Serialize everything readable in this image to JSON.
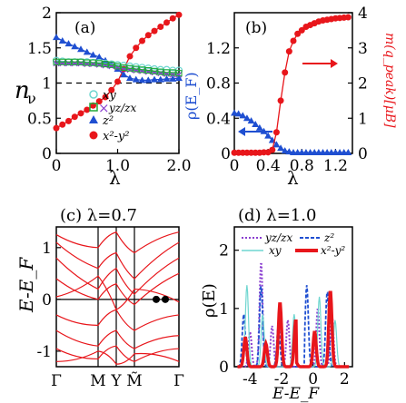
{
  "chart_data": [
    {
      "panel": "(a)",
      "type": "scatter",
      "xlabel": "λ",
      "ylabel": "n",
      "ylabel_sub": "ν",
      "xlim": [
        0,
        2.0
      ],
      "ylim": [
        0,
        2
      ],
      "xticks": [
        "0",
        "1.0",
        "2.0"
      ],
      "yticks": [
        "0",
        "0.5",
        "1",
        "1.5",
        "2"
      ],
      "dashed_y": 1.0,
      "legend": [
        "xy",
        "yz/zx",
        "z²",
        "x²-y²"
      ],
      "series": [
        {
          "name": "x²-y²",
          "color": "#e8161b",
          "marker": "circle",
          "x": [
            0,
            0.1,
            0.2,
            0.3,
            0.4,
            0.5,
            0.6,
            0.7,
            0.8,
            0.9,
            1.0,
            1.1,
            1.2,
            1.3,
            1.4,
            1.5,
            1.6,
            1.7,
            1.8,
            1.9,
            2.0
          ],
          "y": [
            0.36,
            0.41,
            0.46,
            0.52,
            0.57,
            0.62,
            0.68,
            0.74,
            0.8,
            0.9,
            1.02,
            1.2,
            1.38,
            1.5,
            1.6,
            1.68,
            1.74,
            1.8,
            1.86,
            1.92,
            1.97
          ]
        },
        {
          "name": "z²",
          "color": "#1f4fd1",
          "marker": "triangle",
          "x": [
            0,
            0.1,
            0.2,
            0.3,
            0.4,
            0.5,
            0.6,
            0.7,
            0.8,
            0.9,
            1.0,
            1.1,
            1.2,
            1.3,
            1.4,
            1.5,
            1.6,
            1.7,
            1.8,
            1.9,
            2.0
          ],
          "y": [
            1.65,
            1.6,
            1.56,
            1.52,
            1.48,
            1.44,
            1.4,
            1.37,
            1.32,
            1.27,
            1.2,
            1.12,
            1.07,
            1.05,
            1.04,
            1.04,
            1.05,
            1.05,
            1.06,
            1.06,
            1.07
          ]
        },
        {
          "name": "xy",
          "color": "#6fd6d0",
          "marker": "circle-open",
          "x": [
            0,
            0.1,
            0.2,
            0.3,
            0.4,
            0.5,
            0.6,
            0.7,
            0.8,
            0.9,
            1.0,
            1.1,
            1.2,
            1.3,
            1.4,
            1.5,
            1.6,
            1.7,
            1.8,
            1.9,
            2.0
          ],
          "y": [
            1.32,
            1.31,
            1.3,
            1.3,
            1.3,
            1.3,
            1.29,
            1.29,
            1.28,
            1.27,
            1.26,
            1.25,
            1.24,
            1.23,
            1.22,
            1.21,
            1.2,
            1.19,
            1.19,
            1.18,
            1.18
          ]
        },
        {
          "name": "yz/zx",
          "color": "#8a3fd0",
          "marker": "cross",
          "x": [
            0,
            0.1,
            0.2,
            0.3,
            0.4,
            0.5,
            0.6,
            0.7,
            0.8,
            0.9,
            1.0,
            1.1,
            1.2,
            1.3,
            1.4,
            1.5,
            1.6,
            1.7,
            1.8,
            1.9,
            2.0
          ],
          "y": [
            1.28,
            1.28,
            1.28,
            1.28,
            1.28,
            1.27,
            1.27,
            1.26,
            1.25,
            1.24,
            1.22,
            1.2,
            1.19,
            1.18,
            1.17,
            1.16,
            1.15,
            1.14,
            1.13,
            1.12,
            1.12
          ]
        },
        {
          "name": "yz/zx-sq",
          "color": "#22a83a",
          "marker": "square-open",
          "x": [
            0,
            0.1,
            0.2,
            0.3,
            0.4,
            0.5,
            0.6,
            0.7,
            0.8,
            0.9,
            1.0,
            1.1,
            1.2,
            1.3,
            1.4,
            1.5,
            1.6,
            1.7,
            1.8,
            1.9,
            2.0
          ],
          "y": [
            1.3,
            1.3,
            1.3,
            1.3,
            1.3,
            1.29,
            1.29,
            1.28,
            1.27,
            1.26,
            1.24,
            1.22,
            1.21,
            1.2,
            1.19,
            1.18,
            1.17,
            1.16,
            1.15,
            1.15,
            1.14
          ]
        }
      ]
    },
    {
      "panel": "(b)",
      "type": "scatter",
      "xlabel": "λ",
      "ylabel_left": "ρ(E_F)",
      "ylabel_right": "m(q_peak)[μB]",
      "xlim": [
        0,
        1.4
      ],
      "ylim_left": [
        0,
        1.6
      ],
      "ylim_right": [
        0,
        4
      ],
      "xticks": [
        "0",
        "0.4",
        "0.8",
        "1.2"
      ],
      "yticks_left": [
        "0",
        "0.4",
        "0.8",
        "1.2"
      ],
      "yticks_right": [
        "0",
        "1",
        "2",
        "3",
        "4"
      ],
      "series": [
        {
          "name": "ρ(E_F)",
          "axis": "left",
          "color": "#1f4fd1",
          "marker": "triangle",
          "x": [
            0,
            0.05,
            0.1,
            0.15,
            0.2,
            0.25,
            0.3,
            0.35,
            0.4,
            0.45,
            0.5,
            0.55,
            0.6,
            0.65,
            0.7,
            0.75,
            0.8,
            0.85,
            0.9,
            0.95,
            1.0,
            1.05,
            1.1,
            1.15,
            1.2,
            1.25,
            1.3,
            1.35
          ],
          "y": [
            0.46,
            0.45,
            0.43,
            0.4,
            0.37,
            0.33,
            0.29,
            0.25,
            0.2,
            0.15,
            0.1,
            0.06,
            0.03,
            0.02,
            0.01,
            0.01,
            0.01,
            0.01,
            0.01,
            0.01,
            0.01,
            0.01,
            0.01,
            0.01,
            0.01,
            0.01,
            0.01,
            0.01
          ]
        },
        {
          "name": "m(q_peak)",
          "axis": "right",
          "color": "#e8161b",
          "marker": "circle",
          "x": [
            0,
            0.05,
            0.1,
            0.15,
            0.2,
            0.25,
            0.3,
            0.35,
            0.4,
            0.45,
            0.5,
            0.55,
            0.6,
            0.65,
            0.7,
            0.75,
            0.8,
            0.85,
            0.9,
            0.95,
            1.0,
            1.05,
            1.1,
            1.15,
            1.2,
            1.25,
            1.3,
            1.35
          ],
          "y": [
            0.02,
            0.02,
            0.02,
            0.02,
            0.02,
            0.02,
            0.02,
            0.03,
            0.03,
            0.1,
            0.6,
            1.5,
            2.3,
            2.9,
            3.2,
            3.4,
            3.5,
            3.6,
            3.65,
            3.7,
            3.75,
            3.78,
            3.8,
            3.82,
            3.84,
            3.85,
            3.86,
            3.87
          ]
        }
      ]
    },
    {
      "panel": "(c)",
      "title": "(c)  λ=0.7",
      "type": "line",
      "ylabel": "E-E_F",
      "ylim": [
        -1.3,
        1.4
      ],
      "yticks": [
        "1",
        "0",
        "-1"
      ],
      "xticks": [
        "Γ",
        "M",
        "Y",
        "M̃",
        "Γ"
      ],
      "color": "#e8161b"
    },
    {
      "panel": "(d)",
      "title": "(d)  λ=1.0",
      "type": "line",
      "xlabel": "E-E_F",
      "ylabel": "ρ(E)",
      "xlim": [
        -5,
        2.5
      ],
      "ylim": [
        0,
        2.4
      ],
      "xticks": [
        "-4",
        "-2",
        "0",
        "2"
      ],
      "yticks": [
        "0",
        "1",
        "2"
      ],
      "legend": [
        "yz/zx",
        "z²",
        "xy",
        "x²-y²"
      ],
      "series": [
        {
          "name": "yz/zx",
          "color": "#8a3fd0",
          "style": "dotted",
          "peaks": [
            [
              -4.0,
              0.6
            ],
            [
              -3.3,
              1.8
            ],
            [
              -2.6,
              0.7
            ],
            [
              -1.6,
              0.8
            ],
            [
              0.3,
              1.0
            ],
            [
              1.2,
              0.9
            ]
          ]
        },
        {
          "name": "z²",
          "color": "#1f4fd1",
          "style": "dashed",
          "peaks": [
            [
              -4.4,
              0.9
            ],
            [
              -3.3,
              1.4
            ],
            [
              -2.2,
              0.7
            ],
            [
              -0.4,
              1.4
            ],
            [
              0.9,
              1.3
            ]
          ]
        },
        {
          "name": "xy",
          "color": "#6fd6d0",
          "style": "solid",
          "peaks": [
            [
              -4.2,
              1.4
            ],
            [
              -3.2,
              0.9
            ],
            [
              -1.2,
              0.9
            ],
            [
              0.4,
              1.2
            ],
            [
              1.4,
              0.8
            ]
          ]
        },
        {
          "name": "x²-y²",
          "color": "#e8161b",
          "style": "solid-thick",
          "peaks": [
            [
              -4.3,
              0.5
            ],
            [
              -3.0,
              0.4
            ],
            [
              -2.1,
              1.1
            ],
            [
              -1.1,
              0.8
            ],
            [
              0.1,
              0.6
            ],
            [
              1.1,
              1.3
            ]
          ]
        }
      ]
    }
  ]
}
